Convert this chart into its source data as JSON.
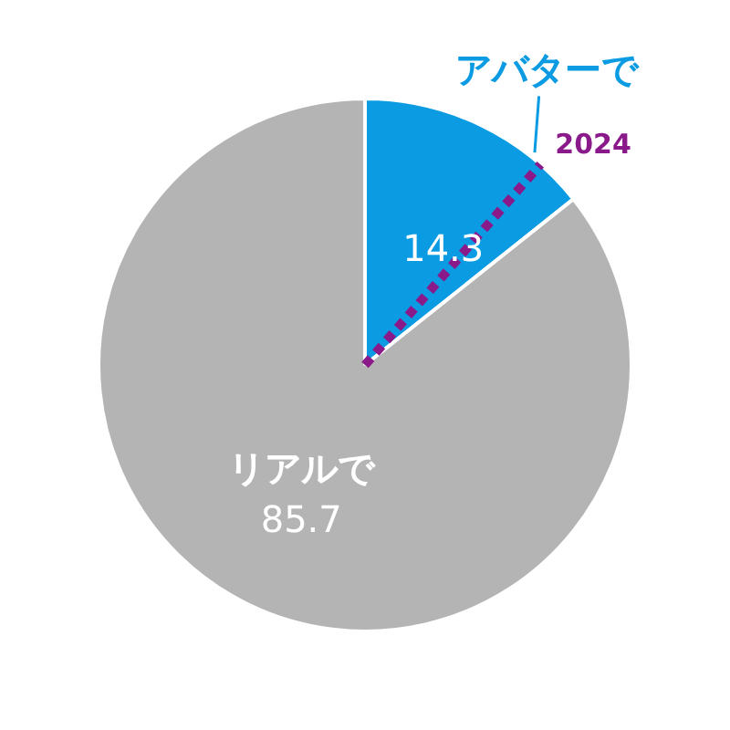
{
  "chart_data": {
    "type": "pie",
    "categories": [
      "アバターで",
      "リアルで"
    ],
    "values": [
      14.3,
      85.7
    ],
    "colors": [
      "#0a9be3",
      "#b4b4b4"
    ],
    "data_labels": true,
    "legend": false,
    "needle": "アバターで",
    "annotations": [
      "2024"
    ]
  }
}
